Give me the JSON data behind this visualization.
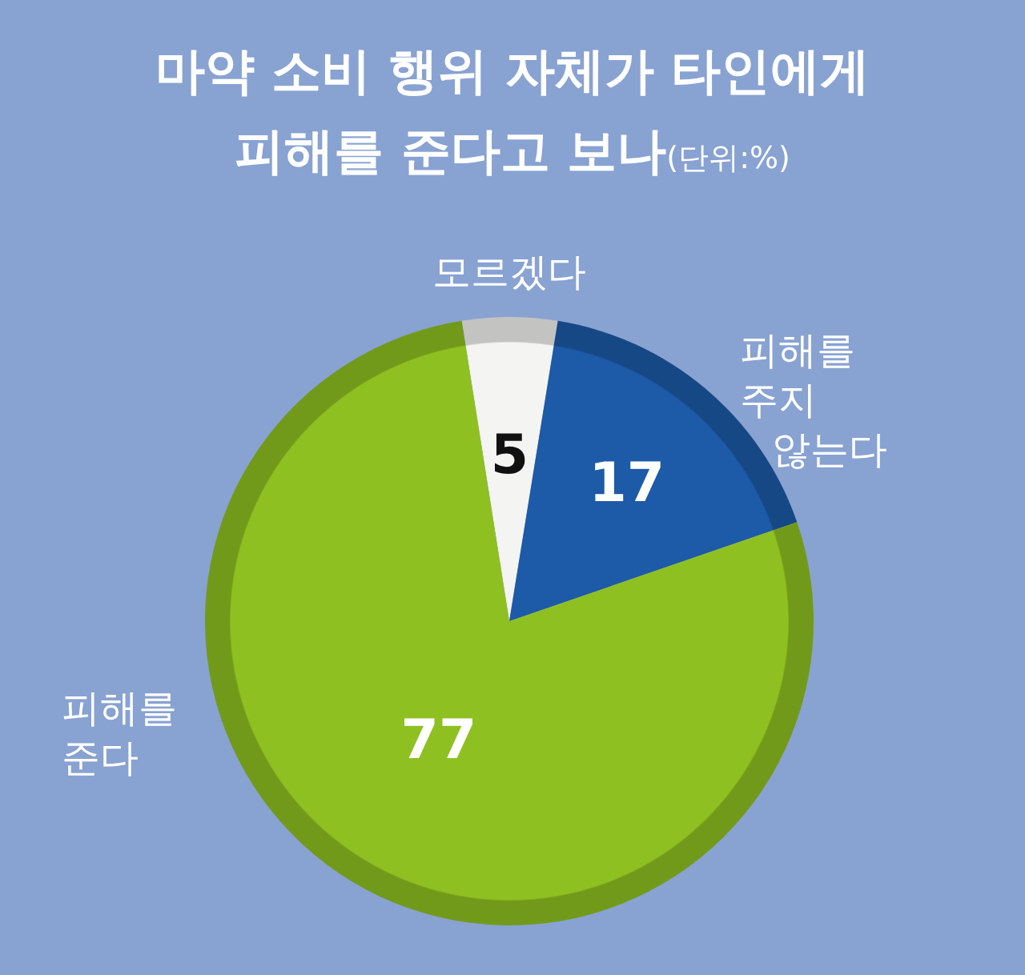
{
  "chart_data": {
    "type": "pie",
    "title": "마약 소비 행위 자체가 타인에게 피해를 준다고 보나",
    "subtitle": "(단위:%)",
    "categories": [
      "모르겠다",
      "피해를 주지 않는다",
      "피해를 준다"
    ],
    "values": [
      5,
      17,
      77
    ],
    "colors": [
      "#f4f4f2",
      "#1d5aa8",
      "#8fc021"
    ],
    "data_labels": true
  }
}
